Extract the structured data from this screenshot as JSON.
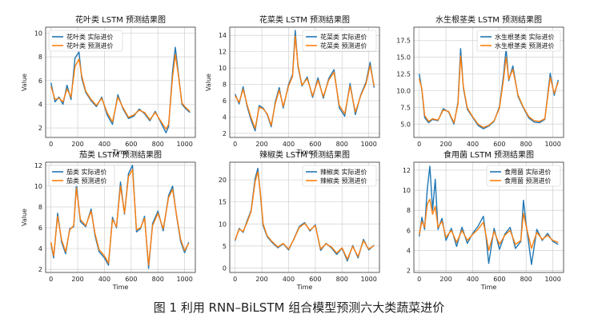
{
  "figure_caption": "图 1 利用 RNN–BiLSTM 组合模型预测六大类蔬菜进价",
  "colors": {
    "actual": "#1f77b4",
    "predicted": "#ff7f0e",
    "grid": "#d0d0d0"
  },
  "chart_data": [
    {
      "type": "line",
      "title": "花叶类 LSTM 预测结果图",
      "xlabel": "Time",
      "ylabel": "Value",
      "xlim": [
        -40,
        1080
      ],
      "ylim": [
        1.2,
        10.5
      ],
      "xticks": [
        0,
        200,
        400,
        600,
        800,
        1000
      ],
      "yticks": [
        2,
        4,
        6,
        8,
        10
      ],
      "legend_position": "top-left",
      "series": [
        {
          "name": "花叶类 实际进价",
          "color": "#1f77b4",
          "x": [
            0,
            30,
            60,
            90,
            120,
            150,
            180,
            210,
            230,
            260,
            300,
            340,
            380,
            420,
            460,
            500,
            540,
            580,
            620,
            660,
            700,
            740,
            780,
            820,
            860,
            880,
            910,
            930,
            950,
            980,
            1010,
            1040
          ],
          "y": [
            5.8,
            4.2,
            4.6,
            4.0,
            5.6,
            4.4,
            7.9,
            8.4,
            6.2,
            5.0,
            4.3,
            3.8,
            4.6,
            3.1,
            2.3,
            4.8,
            3.6,
            2.8,
            3.0,
            3.6,
            3.2,
            2.6,
            3.4,
            2.5,
            1.6,
            2.1,
            6.8,
            8.8,
            6.9,
            4.0,
            3.6,
            3.3
          ]
        },
        {
          "name": "花叶类 预测进价",
          "color": "#ff7f0e",
          "x": [
            0,
            30,
            60,
            90,
            120,
            150,
            180,
            210,
            230,
            260,
            300,
            340,
            380,
            420,
            460,
            500,
            540,
            580,
            620,
            660,
            700,
            740,
            780,
            820,
            860,
            880,
            910,
            930,
            950,
            980,
            1010,
            1040
          ],
          "y": [
            5.5,
            4.4,
            4.5,
            4.2,
            5.3,
            4.6,
            7.2,
            7.8,
            6.4,
            5.1,
            4.4,
            3.9,
            4.5,
            3.3,
            2.5,
            4.6,
            3.7,
            2.9,
            3.1,
            3.5,
            3.3,
            2.7,
            3.3,
            2.6,
            1.9,
            2.3,
            6.3,
            8.2,
            6.7,
            4.1,
            3.7,
            3.4
          ]
        }
      ]
    },
    {
      "type": "line",
      "title": "花菜类 LSTM 预测结果图",
      "xlabel": "Time",
      "ylabel": "Value",
      "xlim": [
        -40,
        1080
      ],
      "ylim": [
        1.5,
        15.0
      ],
      "xticks": [
        0,
        200,
        400,
        600,
        800,
        1000
      ],
      "yticks": [
        2,
        4,
        6,
        8,
        10,
        12,
        14
      ],
      "legend_position": "top-right",
      "series": [
        {
          "name": "花菜类 实际进价",
          "color": "#1f77b4",
          "x": [
            0,
            30,
            60,
            90,
            120,
            150,
            180,
            210,
            240,
            270,
            300,
            330,
            360,
            400,
            430,
            450,
            470,
            500,
            540,
            580,
            620,
            660,
            700,
            740,
            780,
            820,
            860,
            900,
            940,
            980,
            1010,
            1040
          ],
          "y": [
            6.8,
            5.6,
            7.7,
            5.3,
            3.6,
            2.3,
            5.4,
            5.1,
            4.3,
            2.8,
            5.8,
            7.6,
            5.1,
            8.0,
            9.2,
            14.6,
            10.2,
            7.8,
            8.9,
            6.4,
            8.8,
            6.3,
            8.7,
            9.8,
            5.1,
            4.1,
            8.1,
            4.3,
            6.7,
            8.3,
            10.7,
            7.6
          ]
        },
        {
          "name": "花菜类 预测进价",
          "color": "#ff7f0e",
          "x": [
            0,
            30,
            60,
            90,
            120,
            150,
            180,
            210,
            240,
            270,
            300,
            330,
            360,
            400,
            430,
            450,
            470,
            500,
            540,
            580,
            620,
            660,
            700,
            740,
            780,
            820,
            860,
            900,
            940,
            980,
            1010,
            1040
          ],
          "y": [
            6.6,
            5.8,
            7.4,
            5.5,
            3.9,
            2.6,
            5.2,
            5.0,
            4.4,
            3.0,
            5.6,
            7.3,
            5.3,
            7.8,
            9.0,
            13.9,
            10.4,
            7.9,
            8.7,
            6.6,
            8.5,
            6.5,
            8.5,
            9.5,
            5.4,
            4.4,
            7.8,
            4.6,
            6.6,
            8.1,
            10.3,
            7.8
          ]
        }
      ]
    },
    {
      "type": "line",
      "title": "水生根茎类 LSTM 预测结果图",
      "xlabel": "",
      "ylabel": "",
      "xlim": [
        -40,
        1080
      ],
      "ylim": [
        3.0,
        19.5
      ],
      "xticks": [
        0,
        200,
        400,
        600,
        800,
        1000
      ],
      "yticks": [
        5.0,
        7.5,
        10.0,
        12.5,
        15.0,
        17.5
      ],
      "legend_position": "top-right",
      "series": [
        {
          "name": "水生根茎类 实际进价",
          "color": "#1f77b4",
          "x": [
            0,
            20,
            40,
            70,
            100,
            140,
            180,
            220,
            260,
            290,
            310,
            330,
            360,
            400,
            440,
            480,
            520,
            560,
            600,
            630,
            650,
            670,
            700,
            740,
            780,
            820,
            860,
            900,
            940,
            980,
            1010,
            1040
          ],
          "y": [
            12.5,
            10.1,
            6.0,
            5.2,
            5.7,
            5.5,
            7.3,
            6.8,
            5.0,
            8.3,
            16.3,
            10.4,
            7.2,
            6.0,
            4.8,
            4.3,
            4.7,
            5.4,
            7.6,
            12.2,
            16.3,
            11.5,
            13.7,
            9.1,
            7.4,
            5.9,
            5.3,
            5.2,
            5.7,
            12.6,
            9.3,
            11.6
          ]
        },
        {
          "name": "水生根茎类 预测进价",
          "color": "#ff7f0e",
          "x": [
            0,
            20,
            40,
            70,
            100,
            140,
            180,
            220,
            260,
            290,
            310,
            330,
            360,
            400,
            440,
            480,
            520,
            560,
            600,
            630,
            650,
            670,
            700,
            740,
            780,
            820,
            860,
            900,
            940,
            980,
            1010,
            1040
          ],
          "y": [
            11.8,
            10.3,
            6.3,
            5.4,
            5.8,
            5.6,
            7.1,
            6.9,
            5.2,
            8.0,
            15.2,
            10.6,
            7.4,
            6.1,
            5.0,
            4.5,
            4.8,
            5.5,
            7.4,
            11.6,
            15.0,
            11.7,
            13.2,
            9.3,
            7.5,
            6.1,
            5.5,
            5.4,
            5.8,
            12.0,
            9.6,
            11.3
          ]
        }
      ]
    },
    {
      "type": "line",
      "title": "茄类 LSTM 预测结果图",
      "xlabel": "Time",
      "ylabel": "Value",
      "xlim": [
        -40,
        1080
      ],
      "ylim": [
        1.7,
        12.3
      ],
      "xticks": [
        0,
        200,
        400,
        600,
        800,
        1000
      ],
      "yticks": [
        2,
        4,
        6,
        8,
        10,
        12
      ],
      "legend_position": "top-left",
      "series": [
        {
          "name": "茄类 实际进价",
          "color": "#1f77b4",
          "x": [
            0,
            20,
            50,
            80,
            110,
            140,
            170,
            190,
            220,
            260,
            300,
            330,
            360,
            400,
            430,
            460,
            490,
            520,
            550,
            580,
            610,
            640,
            670,
            700,
            730,
            760,
            800,
            840,
            880,
            910,
            940,
            970,
            1000,
            1030
          ],
          "y": [
            4.5,
            3.1,
            7.4,
            4.6,
            3.5,
            5.9,
            6.1,
            10.2,
            6.6,
            6.1,
            7.8,
            5.2,
            3.7,
            3.1,
            2.4,
            7.0,
            6.0,
            10.4,
            7.3,
            11.2,
            12.0,
            5.6,
            5.9,
            7.1,
            2.1,
            6.4,
            7.6,
            5.7,
            9.1,
            10.0,
            7.1,
            4.7,
            3.6,
            4.6
          ]
        },
        {
          "name": "茄类 预测进价",
          "color": "#ff7f0e",
          "x": [
            0,
            20,
            50,
            80,
            110,
            140,
            170,
            190,
            220,
            260,
            300,
            330,
            360,
            400,
            430,
            460,
            490,
            520,
            550,
            580,
            610,
            640,
            670,
            700,
            730,
            760,
            800,
            840,
            880,
            910,
            940,
            970,
            1000,
            1030
          ],
          "y": [
            4.6,
            3.3,
            7.1,
            4.8,
            3.7,
            5.8,
            6.2,
            9.8,
            6.8,
            6.2,
            7.6,
            5.4,
            3.9,
            3.3,
            2.6,
            6.8,
            6.1,
            10.0,
            7.4,
            10.9,
            11.6,
            5.8,
            6.0,
            6.9,
            2.4,
            6.2,
            7.4,
            5.9,
            8.9,
            9.7,
            7.2,
            4.9,
            3.8,
            4.5
          ]
        }
      ]
    },
    {
      "type": "line",
      "title": "辣椒类 LSTM 预测结果图",
      "xlabel": "Time",
      "ylabel": "",
      "xlim": [
        -40,
        1080
      ],
      "ylim": [
        -1.0,
        24.0
      ],
      "xticks": [
        0,
        200,
        400,
        600,
        800,
        1000
      ],
      "yticks": [
        0,
        5,
        10,
        15,
        20
      ],
      "legend_position": "top-right",
      "series": [
        {
          "name": "辣椒类 实际进价",
          "color": "#1f77b4",
          "x": [
            0,
            30,
            60,
            90,
            120,
            150,
            170,
            190,
            210,
            240,
            280,
            320,
            360,
            400,
            440,
            480,
            520,
            560,
            600,
            640,
            680,
            720,
            760,
            800,
            840,
            880,
            920,
            960,
            1000,
            1040
          ],
          "y": [
            6.2,
            9.0,
            8.1,
            10.7,
            13.1,
            20.3,
            22.6,
            16.4,
            9.6,
            7.1,
            5.7,
            4.6,
            5.5,
            4.1,
            6.6,
            9.4,
            10.3,
            8.4,
            9.8,
            4.0,
            5.6,
            4.6,
            3.1,
            4.5,
            1.6,
            5.1,
            2.3,
            6.5,
            4.1,
            5.2
          ]
        },
        {
          "name": "辣椒类 预测进价",
          "color": "#ff7f0e",
          "x": [
            0,
            30,
            60,
            90,
            120,
            150,
            170,
            190,
            210,
            240,
            280,
            320,
            360,
            400,
            440,
            480,
            520,
            560,
            600,
            640,
            680,
            720,
            760,
            800,
            840,
            880,
            920,
            960,
            1000,
            1040
          ],
          "y": [
            6.4,
            8.8,
            8.3,
            10.4,
            12.8,
            19.6,
            21.8,
            16.8,
            10.0,
            7.3,
            5.9,
            4.8,
            5.6,
            4.3,
            6.5,
            9.2,
            10.1,
            8.6,
            9.6,
            4.3,
            5.5,
            4.8,
            3.4,
            4.6,
            2.0,
            4.9,
            2.6,
            6.2,
            4.3,
            5.1
          ]
        }
      ]
    },
    {
      "type": "line",
      "title": "食用菌 LSTM 预测结果图",
      "xlabel": "Time",
      "ylabel": "",
      "xlim": [
        -40,
        1080
      ],
      "ylim": [
        1.8,
        12.8
      ],
      "xticks": [
        0,
        200,
        400,
        600,
        800,
        1000
      ],
      "yticks": [
        2,
        4,
        6,
        8,
        10,
        12
      ],
      "legend_position": "top-right",
      "series": [
        {
          "name": "食用菌 实际进价",
          "color": "#1f77b4",
          "x": [
            0,
            20,
            40,
            60,
            80,
            100,
            120,
            140,
            170,
            200,
            240,
            280,
            320,
            360,
            400,
            440,
            480,
            500,
            520,
            560,
            600,
            640,
            680,
            720,
            760,
            780,
            800,
            840,
            880,
            920,
            960,
            1000,
            1040
          ],
          "y": [
            5.4,
            7.3,
            6.1,
            10.1,
            12.4,
            8.0,
            11.1,
            6.1,
            7.2,
            5.0,
            6.2,
            4.4,
            6.3,
            4.7,
            5.7,
            6.4,
            7.4,
            5.3,
            2.7,
            6.2,
            4.1,
            5.6,
            6.3,
            4.2,
            4.9,
            9.0,
            6.6,
            2.6,
            6.1,
            5.0,
            5.7,
            4.9,
            4.6
          ]
        },
        {
          "name": "食用菌 预测进价",
          "color": "#ff7f0e",
          "x": [
            0,
            20,
            40,
            60,
            80,
            100,
            120,
            140,
            170,
            200,
            240,
            280,
            320,
            360,
            400,
            440,
            480,
            500,
            520,
            560,
            600,
            640,
            680,
            720,
            760,
            780,
            800,
            840,
            880,
            920,
            960,
            1000,
            1040
          ],
          "y": [
            5.6,
            6.9,
            6.3,
            8.6,
            9.1,
            7.6,
            8.4,
            6.3,
            6.9,
            5.3,
            6.0,
            4.8,
            6.0,
            5.0,
            5.6,
            6.1,
            6.8,
            5.5,
            4.0,
            5.9,
            4.6,
            5.5,
            6.0,
            4.6,
            5.0,
            7.7,
            6.4,
            4.2,
            5.8,
            5.1,
            5.5,
            5.0,
            4.8
          ]
        }
      ]
    }
  ]
}
